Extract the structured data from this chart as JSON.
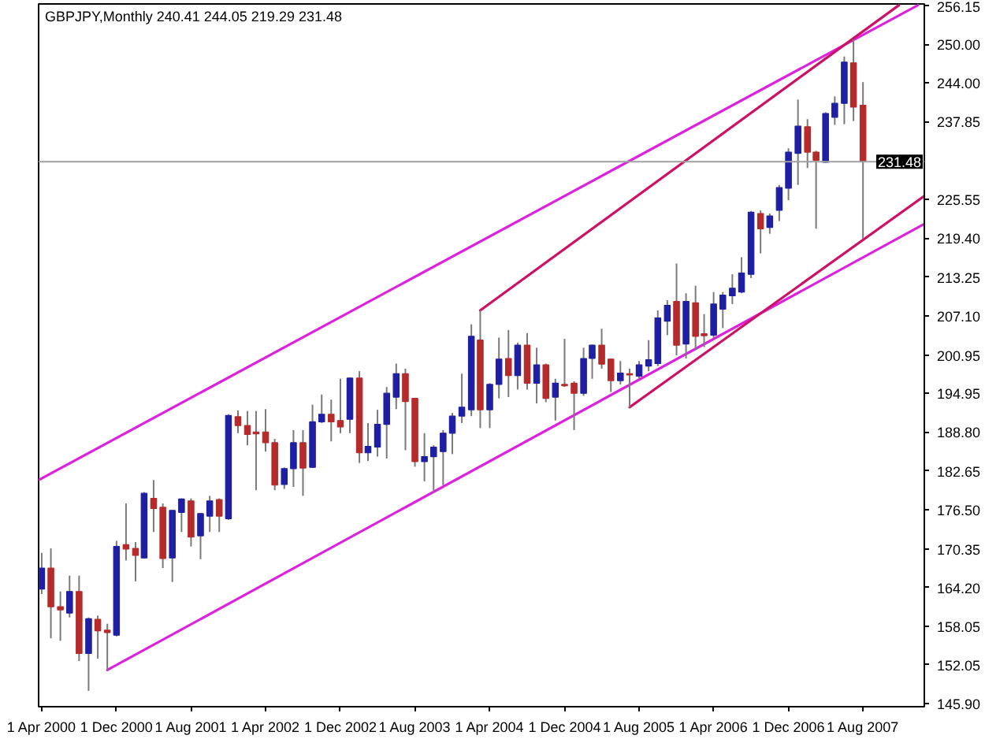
{
  "chart_data": {
    "type": "candlestick",
    "title": "GBPJPY,Monthly 240.41 244.05 219.29 231.48",
    "x": [
      "2000-04",
      "2000-05",
      "2000-06",
      "2000-07",
      "2000-08",
      "2000-09",
      "2000-10",
      "2000-11",
      "2000-12",
      "2001-01",
      "2001-02",
      "2001-03",
      "2001-04",
      "2001-05",
      "2001-06",
      "2001-07",
      "2001-08",
      "2001-09",
      "2001-10",
      "2001-11",
      "2001-12",
      "2002-01",
      "2002-02",
      "2002-03",
      "2002-04",
      "2002-05",
      "2002-06",
      "2002-07",
      "2002-08",
      "2002-09",
      "2002-10",
      "2002-11",
      "2002-12",
      "2003-01",
      "2003-02",
      "2003-03",
      "2003-04",
      "2003-05",
      "2003-06",
      "2003-07",
      "2003-08",
      "2003-09",
      "2003-10",
      "2003-11",
      "2003-12",
      "2004-01",
      "2004-02",
      "2004-03",
      "2004-04",
      "2004-05",
      "2004-06",
      "2004-07",
      "2004-08",
      "2004-09",
      "2004-10",
      "2004-11",
      "2004-12",
      "2005-01",
      "2005-02",
      "2005-03",
      "2005-04",
      "2005-05",
      "2005-06",
      "2005-07",
      "2005-08",
      "2005-09",
      "2005-10",
      "2005-11",
      "2005-12",
      "2006-01",
      "2006-02",
      "2006-03",
      "2006-04",
      "2006-05",
      "2006-06",
      "2006-07",
      "2006-08",
      "2006-09",
      "2006-10",
      "2006-11",
      "2006-12",
      "2007-01",
      "2007-02",
      "2007-03",
      "2007-04",
      "2007-05",
      "2007-06",
      "2007-07",
      "2007-08"
    ],
    "ohlc": [
      [
        164.0,
        169.7,
        163.2,
        167.3
      ],
      [
        167.3,
        170.4,
        156.2,
        161.2
      ],
      [
        161.2,
        163.6,
        155.8,
        160.7
      ],
      [
        160.2,
        166.1,
        159.5,
        163.6
      ],
      [
        163.6,
        166.1,
        152.6,
        153.8
      ],
      [
        153.8,
        159.5,
        147.9,
        159.3
      ],
      [
        159.2,
        159.8,
        153.0,
        157.4
      ],
      [
        157.5,
        158.5,
        151.2,
        157.1
      ],
      [
        156.7,
        171.6,
        156.5,
        170.7
      ],
      [
        171.0,
        177.5,
        168.5,
        170.3
      ],
      [
        170.4,
        171.4,
        165.2,
        169.3
      ],
      [
        168.9,
        179.3,
        168.8,
        179.1
      ],
      [
        178.3,
        181.2,
        173.0,
        176.7
      ],
      [
        176.9,
        177.5,
        167.3,
        168.8
      ],
      [
        168.9,
        176.5,
        165.1,
        176.4
      ],
      [
        176.1,
        178.3,
        173.0,
        178.2
      ],
      [
        177.9,
        178.3,
        170.7,
        172.2
      ],
      [
        172.4,
        176.0,
        168.7,
        175.9
      ],
      [
        175.5,
        178.7,
        173.0,
        177.9
      ],
      [
        178.1,
        178.3,
        173.0,
        175.5
      ],
      [
        175.1,
        191.6,
        174.9,
        191.4
      ],
      [
        191.2,
        192.2,
        188.6,
        189.8
      ],
      [
        189.8,
        192.1,
        186.7,
        188.4
      ],
      [
        188.8,
        192.1,
        179.6,
        188.5
      ],
      [
        188.8,
        192.4,
        185.7,
        187.1
      ],
      [
        187.1,
        187.7,
        179.6,
        180.4
      ],
      [
        180.5,
        183.2,
        179.8,
        183.0
      ],
      [
        183.0,
        189.1,
        180.1,
        187.1
      ],
      [
        187.1,
        189.1,
        178.7,
        183.1
      ],
      [
        183.2,
        193.1,
        183.1,
        190.4
      ],
      [
        190.4,
        194.7,
        190.2,
        191.6
      ],
      [
        191.6,
        193.9,
        187.3,
        190.4
      ],
      [
        190.6,
        197.2,
        188.6,
        189.6
      ],
      [
        190.8,
        197.4,
        188.6,
        197.3
      ],
      [
        197.3,
        198.4,
        183.9,
        185.5
      ],
      [
        185.5,
        190.2,
        184.2,
        186.5
      ],
      [
        186.4,
        192.3,
        184.9,
        190.0
      ],
      [
        190.0,
        195.9,
        184.6,
        194.9
      ],
      [
        194.3,
        199.6,
        192.4,
        198.0
      ],
      [
        198.0,
        198.8,
        185.9,
        193.6
      ],
      [
        194.1,
        194.2,
        183.3,
        184.1
      ],
      [
        184.1,
        188.6,
        181.0,
        184.9
      ],
      [
        184.9,
        186.7,
        179.3,
        186.4
      ],
      [
        185.7,
        189.1,
        180.4,
        188.6
      ],
      [
        188.6,
        191.8,
        185.3,
        191.3
      ],
      [
        191.3,
        198.0,
        190.2,
        192.7
      ],
      [
        192.3,
        205.8,
        191.3,
        203.9
      ],
      [
        203.3,
        208.0,
        189.4,
        192.3
      ],
      [
        192.3,
        196.5,
        189.4,
        196.3
      ],
      [
        196.3,
        203.7,
        194.1,
        200.3
      ],
      [
        200.4,
        204.9,
        194.3,
        197.7
      ],
      [
        197.7,
        202.9,
        195.5,
        202.5
      ],
      [
        202.5,
        204.4,
        195.5,
        196.5
      ],
      [
        196.5,
        202.1,
        193.3,
        199.4
      ],
      [
        199.4,
        199.6,
        193.5,
        194.1
      ],
      [
        194.3,
        197.2,
        190.6,
        196.5
      ],
      [
        196.3,
        203.5,
        195.9,
        196.1
      ],
      [
        196.5,
        196.8,
        189.1,
        194.9
      ],
      [
        194.9,
        202.1,
        194.5,
        200.4
      ],
      [
        200.4,
        202.6,
        197.2,
        202.5
      ],
      [
        202.5,
        205.1,
        198.8,
        199.5
      ],
      [
        200.3,
        200.4,
        195.1,
        196.9
      ],
      [
        196.9,
        200.0,
        196.3,
        198.1
      ],
      [
        198.0,
        198.8,
        192.7,
        197.8
      ],
      [
        197.6,
        200.0,
        197.2,
        199.4
      ],
      [
        199.2,
        203.3,
        198.4,
        200.2
      ],
      [
        199.6,
        208.0,
        199.2,
        206.8
      ],
      [
        206.3,
        209.6,
        204.1,
        208.8
      ],
      [
        209.4,
        215.4,
        200.9,
        202.5
      ],
      [
        202.7,
        210.7,
        200.4,
        209.4
      ],
      [
        209.2,
        211.9,
        201.7,
        203.9
      ],
      [
        204.3,
        207.4,
        202.2,
        204.0
      ],
      [
        204.1,
        210.9,
        203.6,
        209.0
      ],
      [
        208.2,
        210.9,
        205.2,
        210.4
      ],
      [
        210.3,
        213.7,
        209.0,
        211.5
      ],
      [
        210.9,
        216.4,
        210.7,
        213.9
      ],
      [
        213.7,
        223.7,
        213.1,
        223.5
      ],
      [
        223.3,
        223.8,
        217.0,
        220.9
      ],
      [
        221.1,
        223.3,
        220.1,
        222.9
      ],
      [
        223.8,
        227.8,
        222.1,
        227.4
      ],
      [
        227.3,
        233.6,
        225.4,
        233.0
      ],
      [
        232.8,
        241.3,
        227.8,
        237.1
      ],
      [
        237.0,
        238.2,
        230.5,
        233.0
      ],
      [
        233.0,
        233.2,
        220.9,
        231.7
      ],
      [
        231.4,
        239.3,
        231.3,
        239.1
      ],
      [
        238.5,
        241.8,
        237.3,
        240.7
      ],
      [
        240.7,
        248.1,
        237.4,
        247.2
      ],
      [
        247.1,
        250.8,
        237.9,
        240.1
      ],
      [
        240.41,
        244.05,
        219.29,
        231.48
      ]
    ],
    "colors": [
      "#1f1fa3",
      "#b52a2a",
      "#b52a2a",
      "#1f1fa3",
      "#b52a2a",
      "#1f1fa3",
      "#b52a2a",
      "#b52a2a",
      "#1f1fa3",
      "#b52a2a",
      "#b52a2a",
      "#1f1fa3",
      "#b52a2a",
      "#b52a2a",
      "#1f1fa3",
      "#1f1fa3",
      "#b52a2a",
      "#1f1fa3",
      "#1f1fa3",
      "#b52a2a",
      "#1f1fa3",
      "#b52a2a",
      "#b52a2a",
      "#b52a2a",
      "#b52a2a",
      "#b52a2a",
      "#1f1fa3",
      "#1f1fa3",
      "#b52a2a",
      "#1f1fa3",
      "#1f1fa3",
      "#b52a2a",
      "#b52a2a",
      "#1f1fa3",
      "#b52a2a",
      "#1f1fa3",
      "#1f1fa3",
      "#1f1fa3",
      "#1f1fa3",
      "#b52a2a",
      "#b52a2a",
      "#1f1fa3",
      "#1f1fa3",
      "#1f1fa3",
      "#1f1fa3",
      "#1f1fa3",
      "#1f1fa3",
      "#b52a2a",
      "#1f1fa3",
      "#1f1fa3",
      "#b52a2a",
      "#1f1fa3",
      "#b52a2a",
      "#1f1fa3",
      "#b52a2a",
      "#1f1fa3",
      "#b52a2a",
      "#b52a2a",
      "#1f1fa3",
      "#1f1fa3",
      "#b52a2a",
      "#b52a2a",
      "#1f1fa3",
      "#b52a2a",
      "#1f1fa3",
      "#1f1fa3",
      "#1f1fa3",
      "#1f1fa3",
      "#b52a2a",
      "#1f1fa3",
      "#b52a2a",
      "#b52a2a",
      "#1f1fa3",
      "#1f1fa3",
      "#1f1fa3",
      "#1f1fa3",
      "#1f1fa3",
      "#b52a2a",
      "#1f1fa3",
      "#1f1fa3",
      "#1f1fa3",
      "#1f1fa3",
      "#b52a2a",
      "#b52a2a",
      "#1f1fa3",
      "#1f1fa3",
      "#1f1fa3",
      "#b52a2a",
      "#b52a2a"
    ],
    "series": [
      {
        "type": "line",
        "color": "#dd22dd",
        "x": [
          "2000-03-22",
          "2008-01-27"
        ],
        "values": [
          181.2,
          256.2
        ]
      },
      {
        "type": "line",
        "color": "#cc1166",
        "x": [
          "2004-03",
          "2007-11-26"
        ],
        "values": [
          208.0,
          256.2
        ]
      },
      {
        "type": "line",
        "color": "#dd22dd",
        "x": [
          "2000-11",
          "2008-02-15"
        ],
        "values": [
          151.2,
          221.6
        ]
      },
      {
        "type": "line",
        "color": "#cc1166",
        "x": [
          "2005-07",
          "2008-02-15"
        ],
        "values": [
          192.7,
          226.0
        ]
      }
    ],
    "ref_lines": [
      {
        "axis": "y",
        "value": 231.48,
        "label": "231.48",
        "color": "#a0a0a0"
      }
    ],
    "xlim": [
      "2000-03-22",
      "2008-02-17"
    ],
    "ylim": [
      145.4,
      256.4
    ],
    "xticks": [
      {
        "value": "2000-04-01",
        "label": "1 Apr 2000"
      },
      {
        "value": "2000-12-01",
        "label": "1 Dec 2000"
      },
      {
        "value": "2001-08-01",
        "label": "1 Aug 2001"
      },
      {
        "value": "2002-04-01",
        "label": "1 Apr 2002"
      },
      {
        "value": "2002-12-01",
        "label": "1 Dec 2002"
      },
      {
        "value": "2003-08-01",
        "label": "1 Aug 2003"
      },
      {
        "value": "2004-04-01",
        "label": "1 Apr 2004"
      },
      {
        "value": "2004-12-01",
        "label": "1 Dec 2004"
      },
      {
        "value": "2005-08-01",
        "label": "1 Aug 2005"
      },
      {
        "value": "2006-04-01",
        "label": "1 Apr 2006"
      },
      {
        "value": "2006-12-01",
        "label": "1 Dec 2006"
      },
      {
        "value": "2007-08-01",
        "label": "1 Aug 2007"
      }
    ],
    "yticks": [
      {
        "value": 145.9,
        "label": "145.90"
      },
      {
        "value": 152.05,
        "label": "152.05"
      },
      {
        "value": 158.05,
        "label": "158.05"
      },
      {
        "value": 164.2,
        "label": "164.20"
      },
      {
        "value": 170.35,
        "label": "170.35"
      },
      {
        "value": 176.5,
        "label": "176.50"
      },
      {
        "value": 182.65,
        "label": "182.65"
      },
      {
        "value": 188.8,
        "label": "188.80"
      },
      {
        "value": 194.95,
        "label": "194.95"
      },
      {
        "value": 200.95,
        "label": "200.95"
      },
      {
        "value": 207.1,
        "label": "207.10"
      },
      {
        "value": 213.25,
        "label": "213.25"
      },
      {
        "value": 219.4,
        "label": "219.40"
      },
      {
        "value": 225.55,
        "label": "225.55"
      },
      {
        "value": 237.85,
        "label": "237.85"
      },
      {
        "value": 244.0,
        "label": "244.00"
      },
      {
        "value": 250.0,
        "label": "250.00"
      },
      {
        "value": 256.15,
        "label": "256.15"
      }
    ],
    "grid": false
  }
}
